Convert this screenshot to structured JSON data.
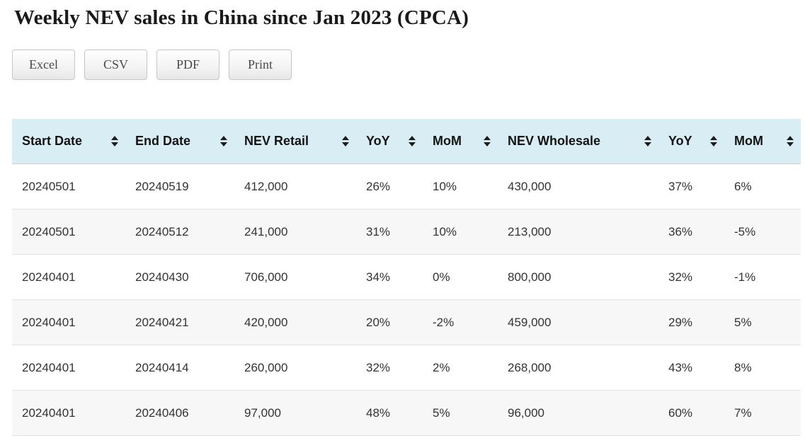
{
  "page": {
    "title": "Weekly NEV sales in China since Jan 2023 (CPCA)"
  },
  "toolbar": {
    "buttons": [
      {
        "label": "Excel"
      },
      {
        "label": "CSV"
      },
      {
        "label": "PDF"
      },
      {
        "label": "Print"
      }
    ]
  },
  "table": {
    "columns": [
      {
        "label": "Start Date",
        "sortable": true
      },
      {
        "label": "End Date",
        "sortable": true
      },
      {
        "label": "NEV Retail",
        "sortable": true
      },
      {
        "label": "YoY",
        "sortable": true
      },
      {
        "label": "MoM",
        "sortable": true
      },
      {
        "label": "NEV Wholesale",
        "sortable": true
      },
      {
        "label": "YoY",
        "sortable": true
      },
      {
        "label": "MoM",
        "sortable": true
      }
    ],
    "rows": [
      [
        "20240501",
        "20240519",
        "412,000",
        "26%",
        "10%",
        "430,000",
        "37%",
        "6%"
      ],
      [
        "20240501",
        "20240512",
        "241,000",
        "31%",
        "10%",
        "213,000",
        "36%",
        "-5%"
      ],
      [
        "20240401",
        "20240430",
        "706,000",
        "34%",
        "0%",
        "800,000",
        "32%",
        "-1%"
      ],
      [
        "20240401",
        "20240421",
        "420,000",
        "20%",
        "-2%",
        "459,000",
        "29%",
        "5%"
      ],
      [
        "20240401",
        "20240414",
        "260,000",
        "32%",
        "2%",
        "268,000",
        "43%",
        "8%"
      ],
      [
        "20240401",
        "20240406",
        "97,000",
        "48%",
        "5%",
        "96,000",
        "60%",
        "7%"
      ]
    ]
  },
  "colors": {
    "header_bg": "#d9edf4",
    "stripe_bg": "#f7f7f7",
    "row_border": "#e2e2e2",
    "button_border": "#c6c6c6",
    "sort_icon": "#1c1c1c"
  }
}
